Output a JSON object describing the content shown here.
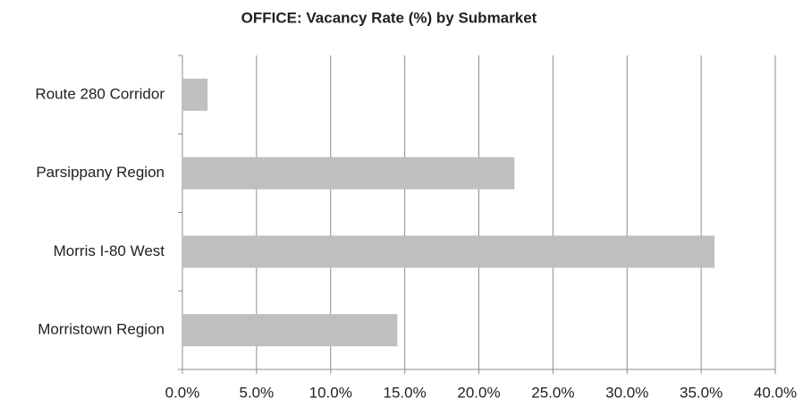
{
  "chart_data": {
    "type": "hbar",
    "title": "OFFICE: Vacancy Rate (%) by Submarket",
    "categories": [
      "Route 280 Corridor",
      "Parsippany Region",
      "Morris I-80 West",
      "Morristown Region"
    ],
    "values": [
      1.7,
      22.4,
      35.9,
      14.5
    ],
    "color": "#bfbfbf",
    "xlim": [
      0,
      40
    ],
    "xticks": [
      {
        "value": 0,
        "label": "0.0%"
      },
      {
        "value": 5,
        "label": "5.0%"
      },
      {
        "value": 10,
        "label": "10.0%"
      },
      {
        "value": 15,
        "label": "15.0%"
      },
      {
        "value": 20,
        "label": "20.0%"
      },
      {
        "value": 25,
        "label": "25.0%"
      },
      {
        "value": 30,
        "label": "30.0%"
      },
      {
        "value": 35,
        "label": "35.0%"
      },
      {
        "value": 40,
        "label": "40.0%"
      }
    ],
    "grid": true
  }
}
